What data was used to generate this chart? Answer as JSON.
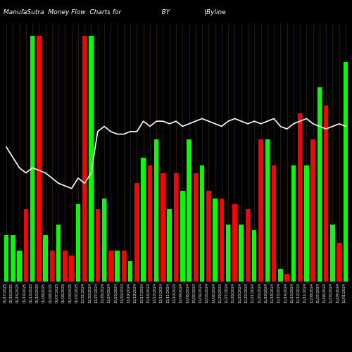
{
  "title": "ManufaSutra  Money Flow  Charts for                    BY                 |Byline",
  "bg_color": "#000000",
  "bar_width": 0.7,
  "line_color": "#ffffff",
  "categories": [
    "01/17/2025",
    "01/16/2025",
    "01/15/2025",
    "01/14/2025",
    "01/13/2025",
    "01/10/2025",
    "01/09/2025",
    "01/08/2025",
    "01/07/2025",
    "01/06/2025",
    "01/03/2025",
    "01/02/2025",
    "12/31/2024",
    "12/30/2024",
    "12/27/2024",
    "12/26/2024",
    "12/24/2024",
    "12/23/2024",
    "12/20/2024",
    "12/19/2024",
    "12/18/2024",
    "12/17/2024",
    "12/16/2024",
    "12/13/2024",
    "12/12/2024",
    "12/11/2024",
    "12/10/2024",
    "12/09/2024",
    "12/06/2024",
    "12/05/2024",
    "12/04/2024",
    "12/03/2024",
    "12/02/2024",
    "11/29/2024",
    "11/27/2024",
    "11/26/2024",
    "11/25/2024",
    "11/22/2024",
    "11/21/2024",
    "11/20/2024",
    "11/19/2024",
    "11/18/2024",
    "11/15/2024",
    "11/14/2024",
    "11/13/2024",
    "11/12/2024",
    "11/11/2024",
    "11/08/2024",
    "11/07/2024",
    "11/06/2024",
    "11/05/2024",
    "11/04/2024",
    "11/01/2024"
  ],
  "bar_heights": [
    18,
    18,
    12,
    28,
    95,
    95,
    18,
    12,
    22,
    12,
    10,
    30,
    95,
    95,
    28,
    32,
    12,
    12,
    12,
    8,
    38,
    48,
    45,
    55,
    42,
    28,
    42,
    35,
    55,
    42,
    45,
    35,
    32,
    32,
    22,
    30,
    22,
    28,
    20,
    55,
    55,
    45,
    5,
    3,
    45,
    65,
    45,
    55,
    75,
    68,
    22,
    15,
    85
  ],
  "bar_colors": [
    "#00ff00",
    "#00ff00",
    "#00ff00",
    "#ff0000",
    "#00ff00",
    "#ff0000",
    "#00ff00",
    "#ff0000",
    "#00ff00",
    "#ff0000",
    "#ff0000",
    "#00ff00",
    "#ff0000",
    "#00ff00",
    "#ff0000",
    "#00ff00",
    "#ff0000",
    "#00ff00",
    "#ff0000",
    "#00ff00",
    "#ff0000",
    "#00ff00",
    "#ff0000",
    "#00ff00",
    "#ff0000",
    "#00ff00",
    "#ff0000",
    "#00ff00",
    "#00ff00",
    "#ff0000",
    "#00ff00",
    "#ff0000",
    "#00ff00",
    "#ff0000",
    "#00ff00",
    "#ff0000",
    "#00ff00",
    "#ff0000",
    "#00ff00",
    "#ff0000",
    "#00ff00",
    "#ff0000",
    "#00ff00",
    "#ff0000",
    "#00ff00",
    "#ff0000",
    "#00ff00",
    "#ff0000",
    "#00ff00",
    "#ff0000",
    "#00ff00",
    "#ff0000",
    "#00ff00"
  ],
  "line_values": [
    52,
    48,
    44,
    42,
    44,
    43,
    42,
    40,
    38,
    37,
    36,
    40,
    38,
    42,
    58,
    60,
    58,
    57,
    57,
    58,
    58,
    62,
    60,
    62,
    62,
    61,
    62,
    60,
    61,
    62,
    63,
    62,
    61,
    60,
    62,
    63,
    62,
    61,
    62,
    61,
    62,
    63,
    60,
    59,
    61,
    62,
    63,
    61,
    60,
    59,
    60,
    61,
    60
  ],
  "grid_color": "#4a3000",
  "text_color": "#ffffff",
  "title_fontsize": 6.5,
  "tick_fontsize": 3.5,
  "ymax": 100
}
